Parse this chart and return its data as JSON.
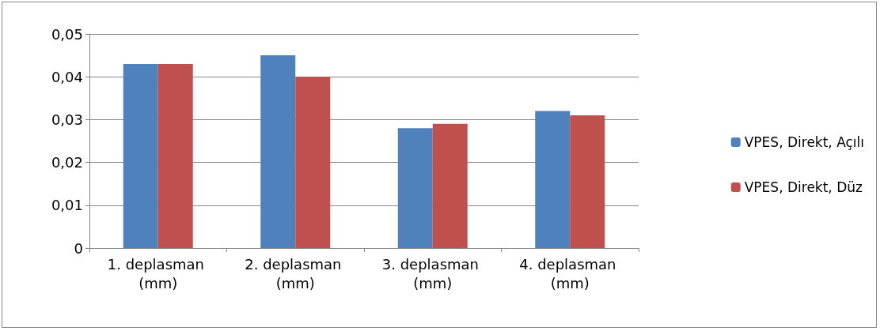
{
  "chart_data": {
    "type": "bar",
    "categories": [
      "1. deplasman (mm)",
      "2. deplasman (mm)",
      "3. deplasman (mm)",
      "4. deplasman (mm)"
    ],
    "series": [
      {
        "name": "VPES, Direkt, Açılı",
        "color": "#4f81bd",
        "values": [
          0.043,
          0.045,
          0.028,
          0.032
        ]
      },
      {
        "name": "VPES, Direkt, Düz",
        "color": "#c0504d",
        "values": [
          0.043,
          0.04,
          0.029,
          0.031
        ]
      }
    ],
    "ylim": [
      0,
      0.05
    ],
    "yticks": [
      {
        "value": 0,
        "label": "0"
      },
      {
        "value": 0.01,
        "label": "0,01"
      },
      {
        "value": 0.02,
        "label": "0,02"
      },
      {
        "value": 0.03,
        "label": "0,03"
      },
      {
        "value": 0.04,
        "label": "0,04"
      },
      {
        "value": 0.05,
        "label": "0,05"
      }
    ],
    "grid": true,
    "legend": "right"
  }
}
